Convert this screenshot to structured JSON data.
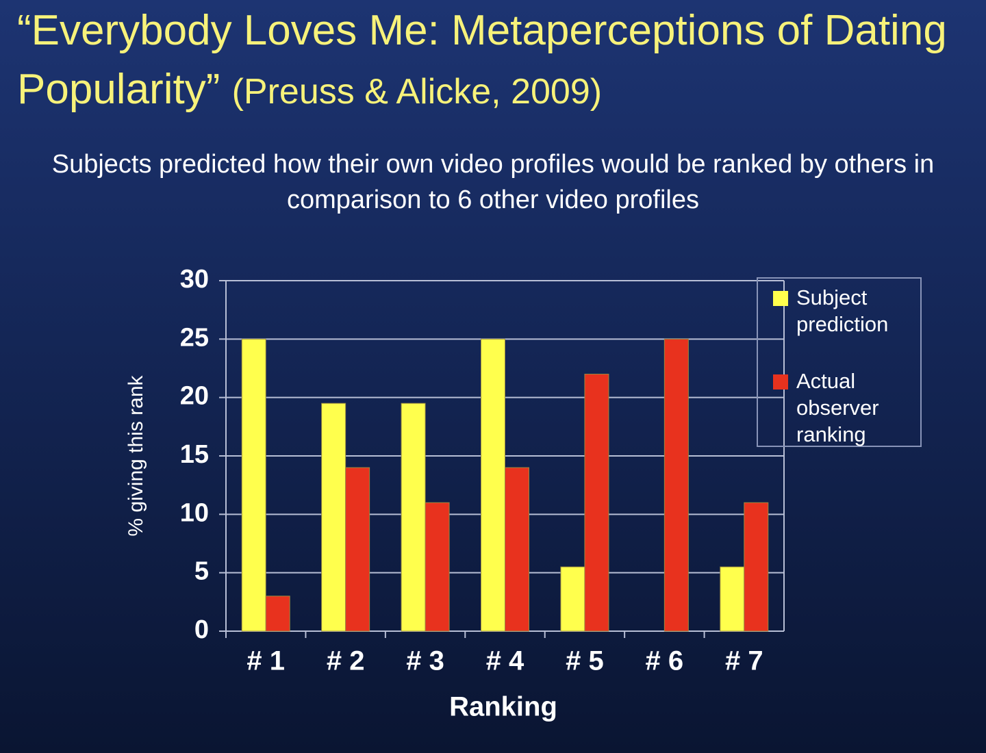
{
  "header": {
    "title": "“Everybody Loves Me: Metaperceptions of Dating Popularity”",
    "citation": "(Preuss & Alicke, 2009)",
    "subtitle": "Subjects predicted how their own video profiles would be ranked by others in comparison to 6 other video profiles"
  },
  "chart_data": {
    "type": "bar",
    "x_label": "Ranking",
    "y_label": "% giving this rank",
    "categories": [
      "# 1",
      "# 2",
      "# 3",
      "# 4",
      "# 5",
      "# 6",
      "# 7"
    ],
    "series": [
      {
        "name": "Subject prediction",
        "color": "#ffff4d",
        "values": [
          25,
          19.5,
          19.5,
          25,
          5.5,
          0,
          5.5
        ]
      },
      {
        "name": "Actual observer ranking",
        "color": "#e8321e",
        "values": [
          3,
          14,
          11,
          14,
          22,
          25,
          11
        ]
      }
    ],
    "ylim": [
      0,
      30
    ],
    "yticks": [
      0,
      5,
      10,
      15,
      20,
      25,
      30
    ],
    "grid": true,
    "legend": "right"
  }
}
